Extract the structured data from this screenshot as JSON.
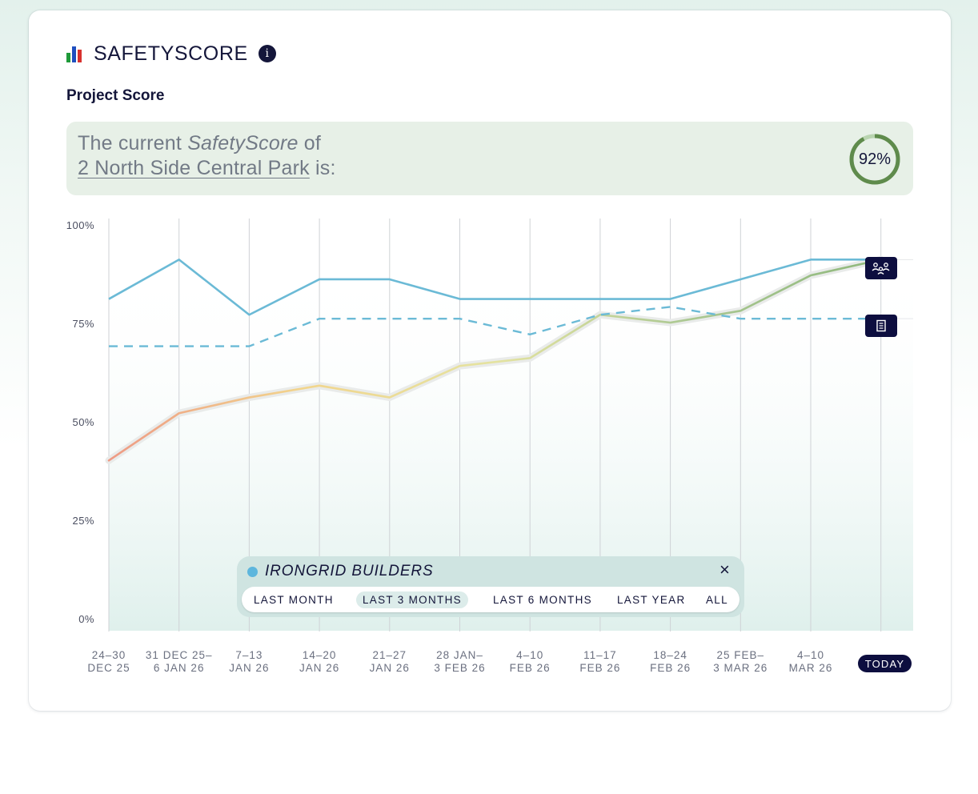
{
  "header": {
    "title": "SAFETYSCORE",
    "icon": "bar-chart-icon",
    "info_icon": "info-icon",
    "info_glyph": "i"
  },
  "section_title": "Project Score",
  "banner": {
    "line1_prefix": "The current ",
    "line1_emphasis": "SafetyScore",
    "line1_suffix": " of",
    "project_name": "2 North Side Central Park",
    "line2_suffix": " is:",
    "score_label": "92%",
    "score_fraction": 0.92,
    "ring_color": "#5f8b4c",
    "ring_track_color": "#b9d4b0"
  },
  "chart_data": {
    "type": "line",
    "y_ticks": [
      "100%",
      "75%",
      "50%",
      "25%",
      "0%"
    ],
    "ylim": [
      0,
      100
    ],
    "categories": [
      [
        "24–30",
        "DEC 25"
      ],
      [
        "31 DEC 25–",
        "6 JAN 26"
      ],
      [
        "7–13",
        "JAN 26"
      ],
      [
        "14–20",
        "JAN 26"
      ],
      [
        "21–27",
        "JAN 26"
      ],
      [
        "28 JAN–",
        "3 FEB 26"
      ],
      [
        "4–10",
        "FEB 26"
      ],
      [
        "11–17",
        "FEB 26"
      ],
      [
        "18–24",
        "FEB 26"
      ],
      [
        "25 FEB–",
        "3 MAR 26"
      ],
      [
        "4–10",
        "MAR 26"
      ],
      [
        "TODAY"
      ]
    ],
    "series": [
      {
        "style": "solid",
        "color": "#6bbad6",
        "values": [
          82,
          92,
          78,
          87,
          87,
          82,
          82,
          82,
          82,
          87,
          92,
          92
        ]
      },
      {
        "style": "dashed",
        "color": "#6bbad6",
        "values": [
          70,
          70,
          70,
          77,
          77,
          77,
          73,
          78,
          80,
          77,
          77,
          77
        ]
      },
      {
        "style": "gradient",
        "colors": [
          "#ee9a84",
          "#f2d58c",
          "#e4e3a0",
          "#abc892",
          "#8fb87c"
        ],
        "values": [
          41,
          53,
          57,
          60,
          57,
          65,
          67,
          78,
          76,
          79,
          88,
          92
        ]
      }
    ]
  },
  "markers": {
    "workers_icon": "workers-group-icon",
    "document_icon": "document-icon"
  },
  "legend": {
    "company": "IRONGRID BUILDERS",
    "dot_color": "#5db6dd",
    "close_icon": "close-icon",
    "close_glyph": "×",
    "ranges": [
      "LAST MONTH",
      "LAST 3 MONTHS",
      "LAST 6 MONTHS",
      "LAST YEAR",
      "ALL"
    ],
    "active_range": "LAST 3 MONTHS"
  }
}
